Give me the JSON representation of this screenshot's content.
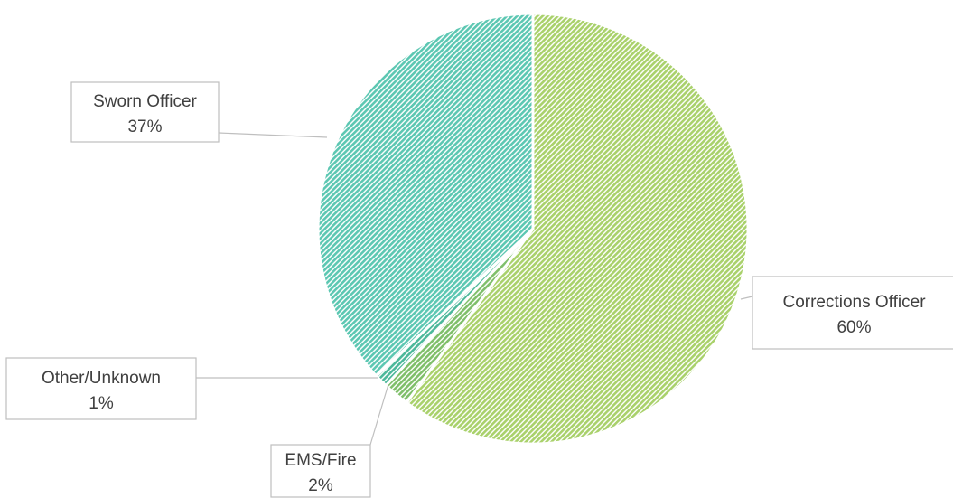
{
  "chart_data": {
    "type": "pie",
    "title": "",
    "slices": [
      {
        "label": "Corrections Officer",
        "value": 60,
        "value_label": "60%",
        "color": "#a9d16b"
      },
      {
        "label": "EMS/Fire",
        "value": 2,
        "value_label": "2%",
        "color": "#7fbf6a"
      },
      {
        "label": "Other/Unknown",
        "value": 1,
        "value_label": "1%",
        "color": "#4cb89a"
      },
      {
        "label": "Sworn Officer",
        "value": 37,
        "value_label": "37%",
        "color": "#5cc7b2"
      }
    ],
    "start_angle_deg": 0,
    "direction": "clockwise",
    "fill_pattern": "diagonal-hatch",
    "legend": "none",
    "data_labels": "callout"
  }
}
